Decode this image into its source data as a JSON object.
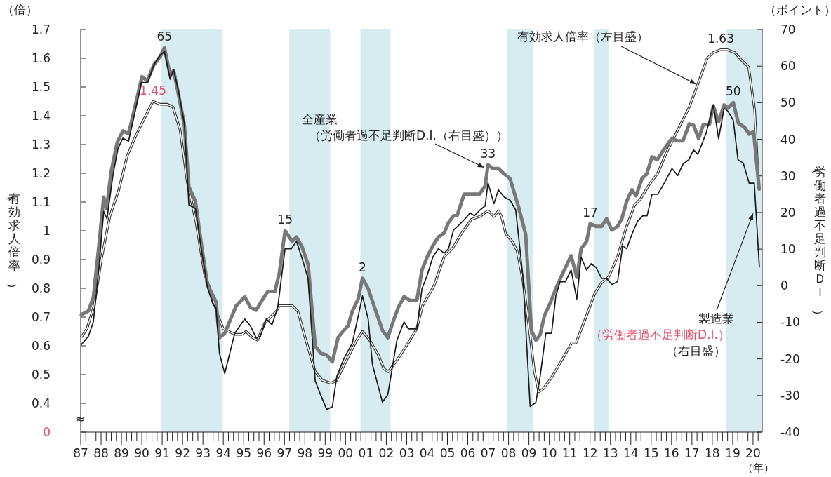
{
  "chart_data": {
    "type": "line",
    "xlabel": "（年）",
    "ylabel": "（有効求人倍率）",
    "y2label": "（労働者過不足判断ＤＩ）",
    "xlim": [
      1987,
      2020.45
    ],
    "xticks": [
      {
        "value": 1987,
        "label": "87"
      },
      {
        "value": 1987.25,
        "label": null
      },
      {
        "value": 1987.5,
        "label": null
      },
      {
        "value": 1987.75,
        "label": null
      },
      {
        "value": 1988,
        "label": "88"
      },
      {
        "value": 1988.25,
        "label": null
      },
      {
        "value": 1988.5,
        "label": null
      },
      {
        "value": 1988.75,
        "label": null
      },
      {
        "value": 1989,
        "label": "89"
      },
      {
        "value": 1989.25,
        "label": null
      },
      {
        "value": 1989.5,
        "label": null
      },
      {
        "value": 1989.75,
        "label": null
      },
      {
        "value": 1990,
        "label": "90"
      },
      {
        "value": 1990.25,
        "label": null
      },
      {
        "value": 1990.5,
        "label": null
      },
      {
        "value": 1990.75,
        "label": null
      },
      {
        "value": 1991,
        "label": "91"
      },
      {
        "value": 1991.25,
        "label": null
      },
      {
        "value": 1991.5,
        "label": null
      },
      {
        "value": 1991.75,
        "label": null
      },
      {
        "value": 1992,
        "label": "92"
      },
      {
        "value": 1992.25,
        "label": null
      },
      {
        "value": 1992.5,
        "label": null
      },
      {
        "value": 1992.75,
        "label": null
      },
      {
        "value": 1993,
        "label": "93"
      },
      {
        "value": 1993.25,
        "label": null
      },
      {
        "value": 1993.5,
        "label": null
      },
      {
        "value": 1993.75,
        "label": null
      },
      {
        "value": 1994,
        "label": "94"
      },
      {
        "value": 1994.25,
        "label": null
      },
      {
        "value": 1994.5,
        "label": null
      },
      {
        "value": 1994.75,
        "label": null
      },
      {
        "value": 1995,
        "label": "95"
      },
      {
        "value": 1995.25,
        "label": null
      },
      {
        "value": 1995.5,
        "label": null
      },
      {
        "value": 1995.75,
        "label": null
      },
      {
        "value": 1996,
        "label": "96"
      },
      {
        "value": 1996.25,
        "label": null
      },
      {
        "value": 1996.5,
        "label": null
      },
      {
        "value": 1996.75,
        "label": null
      },
      {
        "value": 1997,
        "label": "97"
      },
      {
        "value": 1997.25,
        "label": null
      },
      {
        "value": 1997.5,
        "label": null
      },
      {
        "value": 1997.75,
        "label": null
      },
      {
        "value": 1998,
        "label": "98"
      },
      {
        "value": 1998.25,
        "label": null
      },
      {
        "value": 1998.5,
        "label": null
      },
      {
        "value": 1998.75,
        "label": null
      },
      {
        "value": 1999,
        "label": "99"
      },
      {
        "value": 1999.25,
        "label": null
      },
      {
        "value": 1999.5,
        "label": null
      },
      {
        "value": 1999.75,
        "label": null
      },
      {
        "value": 2000,
        "label": "00"
      },
      {
        "value": 2000.25,
        "label": null
      },
      {
        "value": 2000.5,
        "label": null
      },
      {
        "value": 2000.75,
        "label": null
      },
      {
        "value": 2001,
        "label": "01"
      },
      {
        "value": 2001.25,
        "label": null
      },
      {
        "value": 2001.5,
        "label": null
      },
      {
        "value": 2001.75,
        "label": null
      },
      {
        "value": 2002,
        "label": "02"
      },
      {
        "value": 2002.25,
        "label": null
      },
      {
        "value": 2002.5,
        "label": null
      },
      {
        "value": 2002.75,
        "label": null
      },
      {
        "value": 2003,
        "label": "03"
      },
      {
        "value": 2003.25,
        "label": null
      },
      {
        "value": 2003.5,
        "label": null
      },
      {
        "value": 2003.75,
        "label": null
      },
      {
        "value": 2004,
        "label": "04"
      },
      {
        "value": 2004.25,
        "label": null
      },
      {
        "value": 2004.5,
        "label": null
      },
      {
        "value": 2004.75,
        "label": null
      },
      {
        "value": 2005,
        "label": "05"
      },
      {
        "value": 2005.25,
        "label": null
      },
      {
        "value": 2005.5,
        "label": null
      },
      {
        "value": 2005.75,
        "label": null
      },
      {
        "value": 2006,
        "label": "06"
      },
      {
        "value": 2006.25,
        "label": null
      },
      {
        "value": 2006.5,
        "label": null
      },
      {
        "value": 2006.75,
        "label": null
      },
      {
        "value": 2007,
        "label": "07"
      },
      {
        "value": 2007.25,
        "label": null
      },
      {
        "value": 2007.5,
        "label": null
      },
      {
        "value": 2007.75,
        "label": null
      },
      {
        "value": 2008,
        "label": "08"
      },
      {
        "value": 2008.25,
        "label": null
      },
      {
        "value": 2008.5,
        "label": null
      },
      {
        "value": 2008.75,
        "label": null
      },
      {
        "value": 2009,
        "label": "09"
      },
      {
        "value": 2009.25,
        "label": null
      },
      {
        "value": 2009.5,
        "label": null
      },
      {
        "value": 2009.75,
        "label": null
      },
      {
        "value": 2010,
        "label": "10"
      },
      {
        "value": 2010.25,
        "label": null
      },
      {
        "value": 2010.5,
        "label": null
      },
      {
        "value": 2010.75,
        "label": null
      },
      {
        "value": 2011,
        "label": "11"
      },
      {
        "value": 2011.25,
        "label": null
      },
      {
        "value": 2011.5,
        "label": null
      },
      {
        "value": 2011.75,
        "label": null
      },
      {
        "value": 2012,
        "label": "12"
      },
      {
        "value": 2012.25,
        "label": null
      },
      {
        "value": 2012.5,
        "label": null
      },
      {
        "value": 2012.75,
        "label": null
      },
      {
        "value": 2013,
        "label": "13"
      },
      {
        "value": 2013.25,
        "label": null
      },
      {
        "value": 2013.5,
        "label": null
      },
      {
        "value": 2013.75,
        "label": null
      },
      {
        "value": 2014,
        "label": "14"
      },
      {
        "value": 2014.25,
        "label": null
      },
      {
        "value": 2014.5,
        "label": null
      },
      {
        "value": 2014.75,
        "label": null
      },
      {
        "value": 2015,
        "label": "15"
      },
      {
        "value": 2015.25,
        "label": null
      },
      {
        "value": 2015.5,
        "label": null
      },
      {
        "value": 2015.75,
        "label": null
      },
      {
        "value": 2016,
        "label": "16"
      },
      {
        "value": 2016.25,
        "label": null
      },
      {
        "value": 2016.5,
        "label": null
      },
      {
        "value": 2016.75,
        "label": null
      },
      {
        "value": 2017,
        "label": "17"
      },
      {
        "value": 2017.25,
        "label": null
      },
      {
        "value": 2017.5,
        "label": null
      },
      {
        "value": 2017.75,
        "label": null
      },
      {
        "value": 2018,
        "label": "18"
      },
      {
        "value": 2018.25,
        "label": null
      },
      {
        "value": 2018.5,
        "label": null
      },
      {
        "value": 2018.75,
        "label": null
      },
      {
        "value": 2019,
        "label": "19"
      },
      {
        "value": 2019.25,
        "label": null
      },
      {
        "value": 2019.5,
        "label": null
      },
      {
        "value": 2019.75,
        "label": null
      },
      {
        "value": 2020,
        "label": "20"
      },
      {
        "value": 2020.25,
        "label": null
      }
    ],
    "ylim": [
      0.3,
      1.7
    ],
    "yticks": [
      {
        "value": 0.3,
        "label": "0"
      },
      0.4,
      0.5,
      0.6,
      0.7,
      0.8,
      0.9,
      1,
      1.1,
      1.2,
      1.3,
      1.4,
      1.5,
      1.6,
      1.7
    ],
    "y2lim": [
      -40,
      70
    ],
    "y2ticks": [
      -40,
      -30,
      -20,
      -10,
      0,
      10,
      20,
      30,
      40,
      50,
      60,
      70
    ],
    "bands": [
      {
        "axis": "x",
        "from": 1990.94,
        "to": 1993.97,
        "color": "#d6ecf0"
      },
      {
        "axis": "x",
        "from": 1997.24,
        "to": 1999.24,
        "color": "#d6ecf0"
      },
      {
        "axis": "x",
        "from": 2000.73,
        "to": 2002.21,
        "color": "#d6ecf0"
      },
      {
        "axis": "x",
        "from": 2007.93,
        "to": 2009.2,
        "color": "#d6ecf0"
      },
      {
        "axis": "x",
        "from": 2012.19,
        "to": 2012.9,
        "color": "#d6ecf0"
      },
      {
        "axis": "x",
        "from": 2018.68,
        "to": 2020.45,
        "color": "#d6ecf0"
      }
    ],
    "series": [
      {
        "color": "#ffffff",
        "axis": "y",
        "x": [
          1987.03,
          1987.31,
          1987.66,
          1988.01,
          1988.43,
          1988.86,
          1989.28,
          1989.7,
          1990.12,
          1990.55,
          1990.9,
          1991.25,
          1991.53,
          1991.88,
          1992.23,
          1992.66,
          1993.08,
          1993.43,
          1993.71,
          1993.99,
          1994.56,
          1994.91,
          1995.12,
          1995.4,
          1995.68,
          1996.04,
          1996.6,
          1996.75,
          1997.38,
          1997.66,
          1998.01,
          1998.51,
          1998.86,
          1999.28,
          1999.56,
          2000.12,
          2000.55,
          2000.83,
          2001.18,
          2001.6,
          2001.88,
          2002.1,
          2002.52,
          2003.08,
          2003.5,
          2003.78,
          2004.35,
          2004.84,
          2005.26,
          2005.68,
          2006.18,
          2006.6,
          2006.99,
          2007.28,
          2007.51,
          2007.65,
          2007.86,
          2008.21,
          2008.42,
          2008.7,
          2008.98,
          2009.27,
          2009.48,
          2009.69,
          2010.11,
          2010.53,
          2011.1,
          2011.31,
          2011.8,
          2012.22,
          2012.57,
          2012.92,
          2013.35,
          2013.77,
          2014.19,
          2014.47,
          2014.9,
          2015.32,
          2015.74,
          2016.16,
          2016.44,
          2016.87,
          2017.29,
          2017.75,
          2018.05,
          2018.42,
          2018.72,
          2019.1,
          2019.48,
          2019.78,
          2020.08,
          2020.23
        ],
        "values": [
          0.63,
          0.66,
          0.74,
          0.9,
          1.05,
          1.14,
          1.26,
          1.33,
          1.39,
          1.45,
          1.44,
          1.44,
          1.43,
          1.35,
          1.17,
          1.03,
          0.85,
          0.78,
          0.71,
          0.66,
          0.64,
          0.64,
          0.65,
          0.63,
          0.62,
          0.68,
          0.72,
          0.74,
          0.74,
          0.72,
          0.63,
          0.51,
          0.48,
          0.47,
          0.48,
          0.56,
          0.62,
          0.65,
          0.62,
          0.57,
          0.52,
          0.51,
          0.55,
          0.61,
          0.66,
          0.74,
          0.81,
          0.91,
          0.94,
          0.99,
          1.04,
          1.05,
          1.07,
          1.05,
          1.07,
          1.05,
          0.99,
          0.96,
          0.93,
          0.83,
          0.68,
          0.51,
          0.44,
          0.45,
          0.49,
          0.54,
          0.61,
          0.61,
          0.7,
          0.78,
          0.82,
          0.84,
          0.91,
          1.01,
          1.09,
          1.11,
          1.16,
          1.2,
          1.27,
          1.33,
          1.37,
          1.43,
          1.51,
          1.6,
          1.62,
          1.63,
          1.63,
          1.62,
          1.59,
          1.57,
          1.42,
          1.21
        ],
        "value_labels": [
          null,
          null,
          null,
          null,
          null,
          null,
          null,
          null,
          null,
          "1.45",
          null,
          null,
          null,
          null,
          null,
          null,
          null,
          null,
          null,
          null,
          null,
          null,
          null,
          null,
          null,
          null,
          null,
          null,
          null,
          null,
          null,
          null,
          null,
          null,
          null,
          null,
          null,
          null,
          null,
          null,
          null,
          null,
          null,
          null,
          null,
          null,
          null,
          null,
          null,
          null,
          null,
          null,
          null,
          null,
          null,
          null,
          null,
          null,
          null,
          null,
          null,
          null,
          null,
          null,
          null,
          null,
          null,
          null,
          null,
          null,
          null,
          null,
          null,
          null,
          null,
          null,
          null,
          null,
          null,
          null,
          null,
          null,
          null,
          null,
          null,
          "1.63",
          null,
          null,
          null,
          null,
          null,
          null
        ]
      },
      {
        "color": "#787878",
        "axis": "y2",
        "x": [
          1987.03,
          1987.38,
          1987.62,
          1987.87,
          1988.13,
          1988.27,
          1988.5,
          1988.79,
          1989.07,
          1989.35,
          1989.7,
          1990.01,
          1990.27,
          1990.59,
          1990.9,
          1991.11,
          1991.39,
          1991.56,
          1991.81,
          1992.09,
          1992.31,
          1992.63,
          1992.94,
          1993.22,
          1993.5,
          1993.64,
          1993.81,
          1994.07,
          1994.63,
          1995.05,
          1995.33,
          1995.61,
          1995.9,
          1996.18,
          1996.53,
          1996.75,
          1997.03,
          1997.38,
          1997.59,
          1997.87,
          1998.16,
          1998.51,
          1998.79,
          1999.07,
          1999.35,
          1999.63,
          1999.91,
          2000.12,
          2000.33,
          2000.62,
          2000.83,
          2001.11,
          2001.47,
          2001.81,
          2002.07,
          2002.38,
          2002.59,
          2002.87,
          2003.15,
          2003.5,
          2003.75,
          2004,
          2004.28,
          2004.56,
          2004.84,
          2005.05,
          2005.3,
          2005.47,
          2005.82,
          2006.18,
          2006.57,
          2006.85,
          2006.99,
          2007.23,
          2007.51,
          2007.79,
          2008.07,
          2008.49,
          2008.84,
          2009.12,
          2009.34,
          2009.55,
          2009.76,
          2010.04,
          2010.32,
          2010.67,
          2011.07,
          2011.35,
          2011.56,
          2011.83,
          2012.01,
          2012.29,
          2012.57,
          2012.81,
          2013.07,
          2013.35,
          2013.56,
          2013.8,
          2014.05,
          2014.26,
          2014.55,
          2014.78,
          2015.04,
          2015.3,
          2015.61,
          2016.02,
          2016.28,
          2016.56,
          2016.87,
          2017.08,
          2017.33,
          2017.56,
          2017.86,
          2018.05,
          2018.31,
          2018.58,
          2018.76,
          2019.03,
          2019.28,
          2019.58,
          2019.81,
          2020.03,
          2020.3
        ],
        "values": [
          -7.9,
          -6.9,
          -3.2,
          9.7,
          24.2,
          21.1,
          31.3,
          39.1,
          42.3,
          41.5,
          49.7,
          57.1,
          56,
          60.3,
          62.6,
          65,
          57.5,
          58.8,
          52,
          43.8,
          27,
          23,
          10.6,
          0.3,
          -2.8,
          -4.4,
          -14.2,
          -13,
          -5.5,
          -3,
          -5.9,
          -6.7,
          -4,
          -1.6,
          -1.6,
          3.5,
          15,
          12.1,
          13.3,
          10.5,
          5.8,
          -16.5,
          -18.5,
          -18.9,
          -20.8,
          -14.2,
          -12.2,
          -11,
          -7,
          -3.6,
          2,
          -0.8,
          -6.7,
          -12.2,
          -14.2,
          -9.1,
          -5.9,
          -3,
          -4,
          -4,
          4.3,
          7.8,
          10.9,
          13.3,
          14.4,
          17.2,
          19.1,
          19.1,
          25,
          25,
          25,
          27.3,
          33,
          32,
          32,
          30.5,
          29.3,
          21.5,
          14,
          -12.2,
          -14.9,
          -13.4,
          -8.2,
          -4.8,
          -0.8,
          3.5,
          8.2,
          2.3,
          10.1,
          12.1,
          17,
          16.2,
          16.2,
          18.3,
          15.2,
          16.2,
          18.3,
          23.1,
          26.2,
          24.6,
          29.3,
          30.5,
          35.2,
          34.4,
          37.1,
          40.3,
          39.6,
          39.6,
          44.2,
          43.8,
          40.2,
          44,
          44.1,
          49.1,
          44.8,
          49.4,
          48.5,
          50,
          44.4,
          43.3,
          41.4,
          42.1,
          26.4
        ],
        "value_labels": [
          null,
          null,
          null,
          null,
          null,
          null,
          null,
          null,
          null,
          null,
          null,
          null,
          null,
          null,
          null,
          "65",
          null,
          null,
          null,
          null,
          null,
          null,
          null,
          null,
          null,
          null,
          null,
          null,
          null,
          null,
          null,
          null,
          null,
          null,
          null,
          null,
          "15",
          null,
          null,
          null,
          null,
          null,
          null,
          null,
          null,
          null,
          null,
          null,
          null,
          null,
          "2",
          null,
          null,
          null,
          null,
          null,
          null,
          null,
          null,
          null,
          null,
          null,
          null,
          null,
          null,
          null,
          null,
          null,
          null,
          null,
          null,
          null,
          "33",
          null,
          null,
          null,
          null,
          null,
          null,
          null,
          null,
          null,
          null,
          null,
          null,
          null,
          null,
          null,
          null,
          null,
          "17",
          null,
          null,
          null,
          null,
          null,
          null,
          null,
          null,
          null,
          null,
          null,
          null,
          null,
          null,
          null,
          null,
          null,
          null,
          null,
          null,
          null,
          null,
          null,
          null,
          null,
          null,
          "50",
          null,
          null,
          null,
          null,
          null
        ]
      },
      {
        "color": "#1a1a1a",
        "axis": "y2",
        "x": [
          1987.03,
          1987.38,
          1987.62,
          1987.87,
          1988.13,
          1988.29,
          1988.58,
          1988.83,
          1989.07,
          1989.35,
          1989.98,
          1990.29,
          1990.59,
          1990.9,
          1991.11,
          1991.39,
          1991.56,
          1991.81,
          1992.09,
          1992.31,
          1992.63,
          1992.94,
          1993.22,
          1993.5,
          1993.64,
          1993.81,
          1994.07,
          1994.56,
          1995.05,
          1995.33,
          1995.61,
          1995.82,
          1996.11,
          1996.39,
          1996.67,
          1997.03,
          1997.34,
          1997.59,
          1997.87,
          1998.16,
          1998.51,
          1998.79,
          1999.07,
          1999.35,
          1999.57,
          1999.91,
          2000.33,
          2000.62,
          2000.83,
          2001.11,
          2001.32,
          2001.81,
          2002.07,
          2002.52,
          2002.87,
          2003.08,
          2003.5,
          2003.75,
          2004,
          2004.28,
          2004.56,
          2004.84,
          2005.05,
          2005.3,
          2005.54,
          2005.87,
          2006.11,
          2006.32,
          2006.6,
          2006.85,
          2006.99,
          2007.28,
          2007.5,
          2007.79,
          2008.07,
          2008.35,
          2008.7,
          2009.06,
          2009.34,
          2009.55,
          2009.83,
          2010.11,
          2010.32,
          2010.53,
          2010.79,
          2011.07,
          2011.35,
          2011.56,
          2011.83,
          2012.05,
          2012.29,
          2012.57,
          2012.81,
          2013.07,
          2013.35,
          2013.6,
          2013.8,
          2014.05,
          2014.33,
          2014.59,
          2014.8,
          2015.04,
          2015.32,
          2015.61,
          2016.02,
          2016.3,
          2016.56,
          2016.84,
          2017.08,
          2017.29,
          2017.71,
          2018.05,
          2018.31,
          2018.58,
          2018.76,
          2019.03,
          2019.26,
          2019.52,
          2019.81,
          2020.06,
          2020.31
        ],
        "values": [
          -16.1,
          -13.8,
          -9.9,
          3.5,
          20.3,
          18.3,
          30.1,
          37.5,
          40.3,
          39.5,
          55.5,
          55.5,
          60.3,
          63,
          64,
          56.4,
          59.1,
          52.8,
          44.2,
          22.1,
          21.1,
          9.3,
          -0.5,
          -5.1,
          -5.9,
          -18.5,
          -24,
          -13,
          -9.1,
          -11,
          -14.2,
          -13.8,
          -9.1,
          -10.7,
          -5.9,
          10.1,
          10.1,
          12.1,
          7.4,
          1.9,
          -26,
          -30,
          -33.8,
          -33.1,
          -24.8,
          -20,
          -15.7,
          -8.3,
          -2.8,
          -9.1,
          -21.6,
          -31.8,
          -29.8,
          -14.9,
          -9.9,
          -11.8,
          -11.8,
          -0.8,
          2.7,
          7.8,
          10.1,
          8.9,
          10.1,
          15.2,
          16.4,
          18.3,
          19.9,
          19.1,
          20.7,
          21.8,
          28.1,
          22.4,
          26.2,
          24.2,
          23.4,
          20.7,
          2.7,
          -33,
          -31.9,
          -24.8,
          -13,
          -13,
          -2.8,
          1.1,
          1.1,
          4.3,
          -3.6,
          7.8,
          4.3,
          6,
          5,
          2,
          2,
          0.3,
          1.1,
          10.9,
          10.1,
          14,
          17.6,
          19.1,
          19.1,
          25,
          25,
          27.7,
          32,
          30.1,
          33.2,
          34.4,
          37.1,
          35.9,
          41.9,
          49.4,
          40.2,
          48.5,
          47.7,
          45.2,
          34.4,
          33.5,
          28,
          28,
          5.1
        ]
      }
    ],
    "annotations": [
      "（倍）",
      "（ポイント）",
      "≈",
      {
        "text": "有効求人倍率（左目盛）",
        "x": 2017.2,
        "y": 1.51
      },
      "全産業",
      {
        "text": "（労働者過不足判断D.I.（右目盛））",
        "x": 2006.8,
        "y": 1.22
      },
      {
        "text": "製造業",
        "x": 2020.0,
        "y": 1.06
      },
      "（労働者過不足判断D.I.）",
      "（右目盛）"
    ]
  }
}
